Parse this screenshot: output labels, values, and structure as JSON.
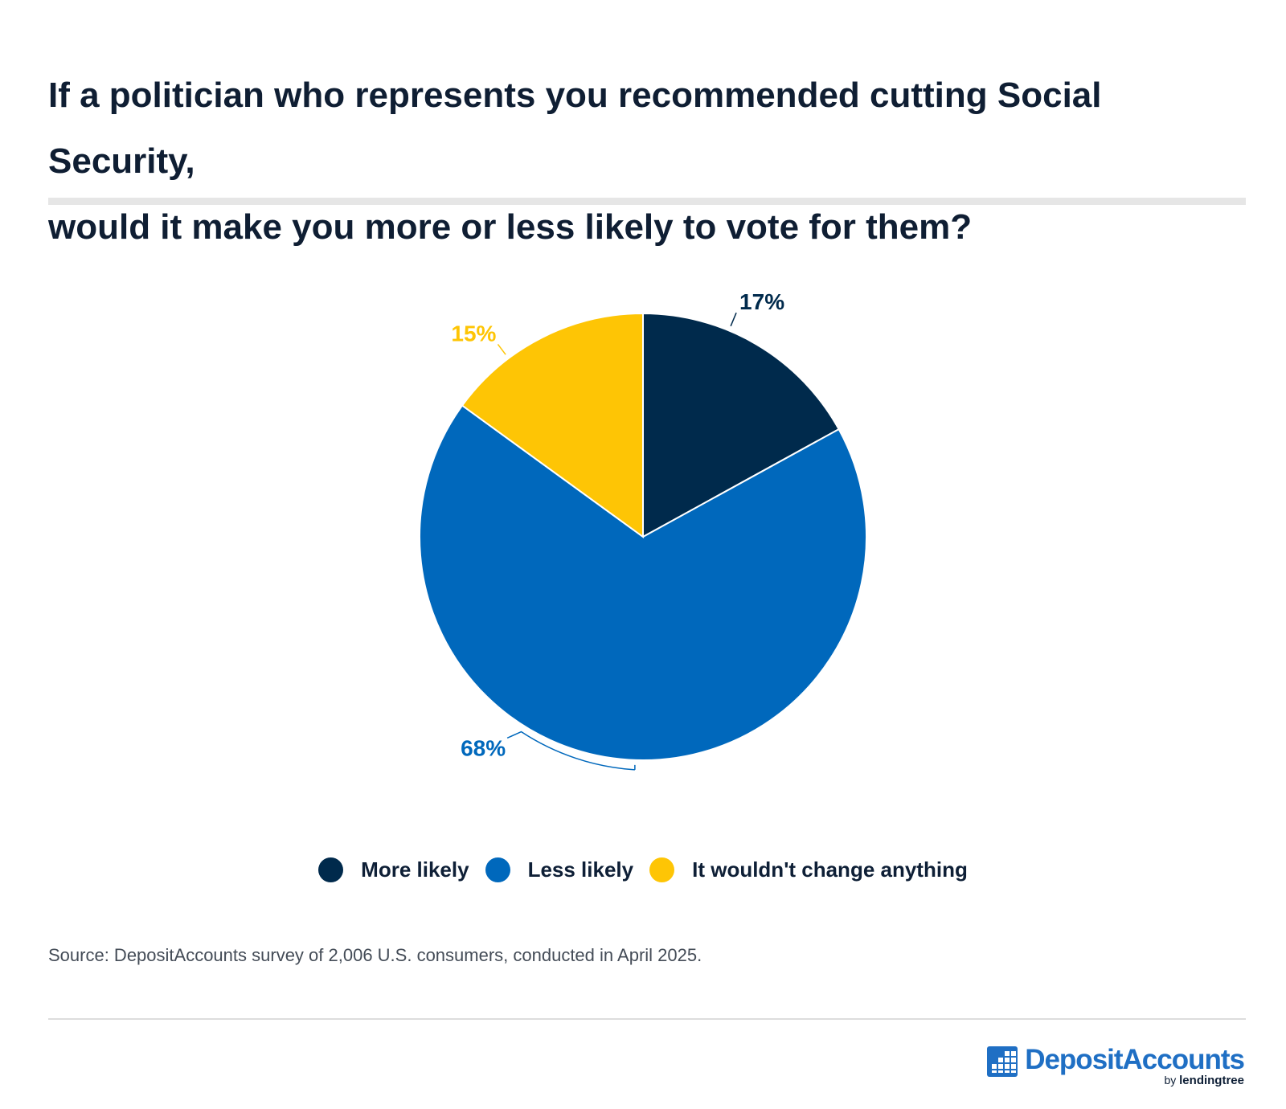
{
  "title_lines": [
    "If a politician who represents you recommended cutting Social Security,",
    "would it make you more or less likely to vote for them?"
  ],
  "chart_data": {
    "type": "pie",
    "title": "If a politician who represents you recommended cutting Social Security, would it make you more or less likely to vote for them?",
    "slices": [
      {
        "label": "More likely",
        "value": 17,
        "display": "17%",
        "color": "#002a4c"
      },
      {
        "label": "Less likely",
        "value": 68,
        "display": "68%",
        "color": "#0068bc"
      },
      {
        "label": "It wouldn't change anything",
        "value": 15,
        "display": "15%",
        "color": "#fec505"
      }
    ],
    "legend_position": "bottom"
  },
  "source": "Source: DepositAccounts survey of 2,006 U.S. consumers, conducted in April 2025.",
  "brand": {
    "name": "DepositAccounts",
    "by": "by",
    "parent": "lendingtree"
  }
}
